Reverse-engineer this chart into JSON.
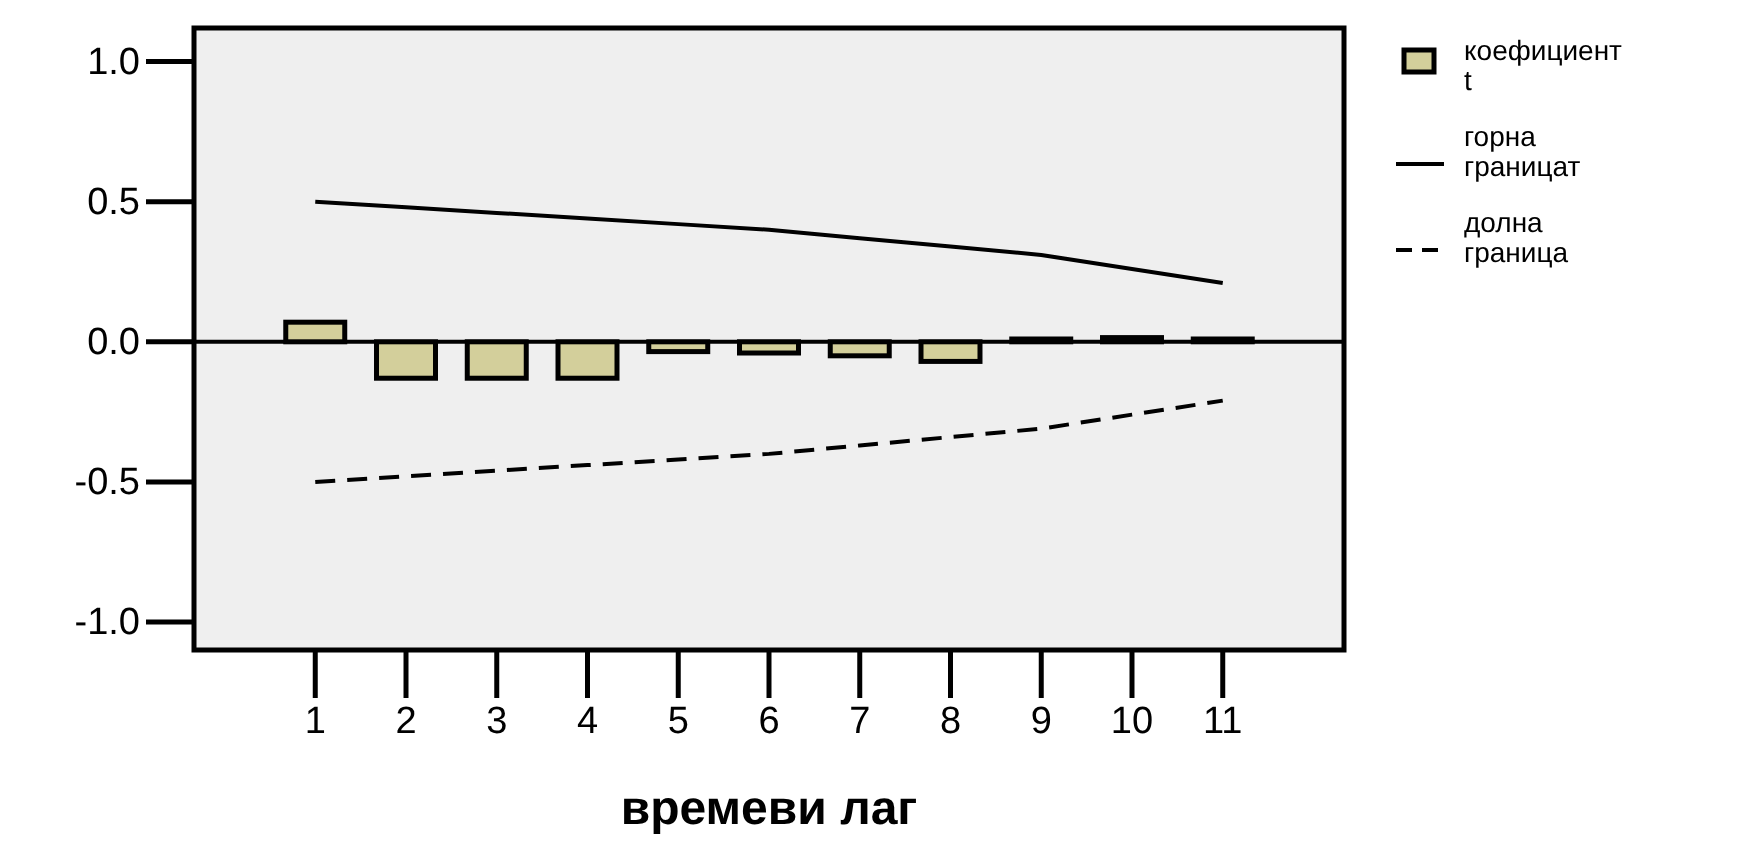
{
  "chart_data": {
    "type": "bar",
    "xlabel": "времеви лаг",
    "categories": [
      "1",
      "2",
      "3",
      "4",
      "5",
      "6",
      "7",
      "8",
      "9",
      "10",
      "11"
    ],
    "series": [
      {
        "name": "коефициентt",
        "color": "#d3cf9b",
        "values": [
          0.07,
          -0.13,
          -0.13,
          -0.13,
          -0.035,
          -0.04,
          -0.05,
          -0.07,
          0.01,
          0.015,
          0.01
        ]
      },
      {
        "name": "горна границат",
        "type": "line",
        "color": "#000000",
        "line_style": "solid",
        "values": [
          0.5,
          0.48,
          0.46,
          0.44,
          0.42,
          0.4,
          0.37,
          0.34,
          0.31,
          0.26,
          0.21
        ]
      },
      {
        "name": "долна граница",
        "type": "line",
        "color": "#000000",
        "line_style": "dashed",
        "values": [
          -0.5,
          -0.48,
          -0.46,
          -0.44,
          -0.42,
          -0.4,
          -0.37,
          -0.34,
          -0.31,
          -0.26,
          -0.21
        ]
      }
    ],
    "ylim": [
      -1.1,
      1.12
    ],
    "yticks": [
      {
        "value": -1,
        "label": "-1.0"
      },
      {
        "value": -0.5,
        "label": "-0.5"
      },
      {
        "value": 0,
        "label": "0.0"
      },
      {
        "value": 0.5,
        "label": "0.5"
      },
      {
        "value": 1,
        "label": "1.0"
      }
    ],
    "ref_lines": [
      {
        "axis": "y",
        "value": 0
      }
    ],
    "grid": false,
    "legend": "top right",
    "marker": "none"
  }
}
